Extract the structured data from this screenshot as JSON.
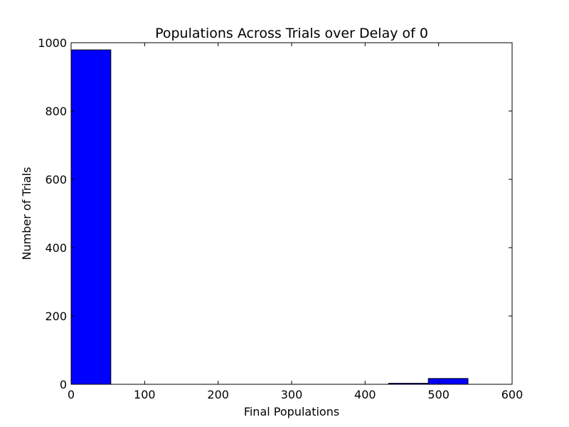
{
  "chart_data": {
    "type": "bar",
    "title": "Populations Across Trials over Delay of 0",
    "xlabel": "Final Populations",
    "ylabel": "Number of Trials",
    "xlim": [
      0,
      600
    ],
    "ylim": [
      0,
      1000
    ],
    "x_ticks": [
      0,
      100,
      200,
      300,
      400,
      500,
      600
    ],
    "y_ticks": [
      0,
      200,
      400,
      600,
      800,
      1000
    ],
    "grid": false,
    "bar_color": "#0000ff",
    "edge_color": "#000000",
    "bins": [
      {
        "x0": 0,
        "x1": 54,
        "count": 979
      },
      {
        "x0": 54,
        "x1": 108,
        "count": 0
      },
      {
        "x0": 108,
        "x1": 162,
        "count": 0
      },
      {
        "x0": 162,
        "x1": 216,
        "count": 0
      },
      {
        "x0": 216,
        "x1": 270,
        "count": 0
      },
      {
        "x0": 270,
        "x1": 324,
        "count": 0
      },
      {
        "x0": 324,
        "x1": 378,
        "count": 0
      },
      {
        "x0": 378,
        "x1": 432,
        "count": 0
      },
      {
        "x0": 432,
        "x1": 486,
        "count": 3
      },
      {
        "x0": 486,
        "x1": 540,
        "count": 17
      }
    ]
  }
}
